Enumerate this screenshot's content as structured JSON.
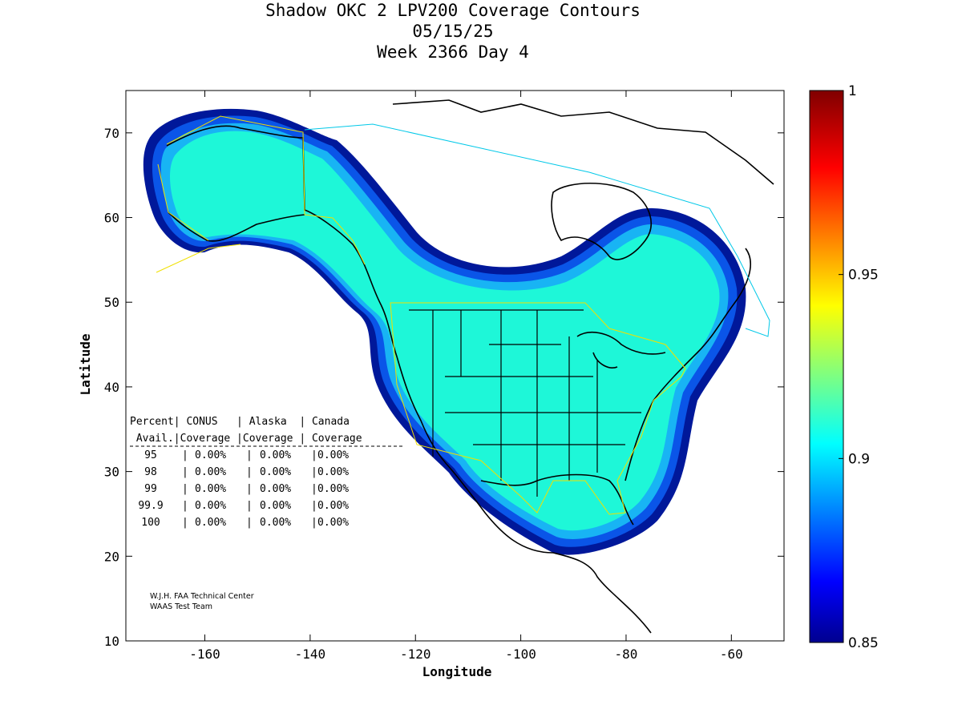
{
  "title": {
    "line1": "Shadow OKC 2 LPV200 Coverage Contours",
    "line2": "05/15/25",
    "line3": "Week 2366 Day 4"
  },
  "axes": {
    "xlabel": "Longitude",
    "ylabel": "Latitude",
    "xticks": [
      "-160",
      "-140",
      "-120",
      "-100",
      "-80",
      "-60"
    ],
    "yticks": [
      "10",
      "20",
      "30",
      "40",
      "50",
      "60",
      "70"
    ],
    "xlim": [
      -175,
      -50
    ],
    "ylim": [
      10,
      75
    ]
  },
  "colorbar": {
    "ticks": [
      "0.85",
      "0.9",
      "0.95",
      "1"
    ],
    "range": [
      0.85,
      1
    ]
  },
  "stats_table": {
    "header1": "Percent| CONUS   | Alaska  | Canada",
    "header2": " Avail.|Coverage |Coverage | Coverage",
    "rows": [
      {
        "avail": "95",
        "conus": "0.00%",
        "alaska": "0.00%",
        "canada": "0.00%"
      },
      {
        "avail": "98",
        "conus": "0.00%",
        "alaska": "0.00%",
        "canada": "0.00%"
      },
      {
        "avail": "99",
        "conus": "0.00%",
        "alaska": "0.00%",
        "canada": "0.00%"
      },
      {
        "avail": "99.9",
        "conus": "0.00%",
        "alaska": "0.00%",
        "canada": "0.00%"
      },
      {
        "avail": "100",
        "conus": "0.00%",
        "alaska": "0.00%",
        "canada": "0.00%"
      }
    ]
  },
  "credit": {
    "line1": "W.J.H. FAA Technical Center",
    "line2": "WAAS Test Team"
  },
  "colors": {
    "coverage_fill": "#1ef7d8",
    "contour_outer": "#00189a",
    "contour_mid": "#0a55e8",
    "contour_inner": "#18b4f4",
    "conus_boundary": "#f0e000",
    "canada_boundary": "#00c8e8",
    "coastline": "#000000"
  }
}
